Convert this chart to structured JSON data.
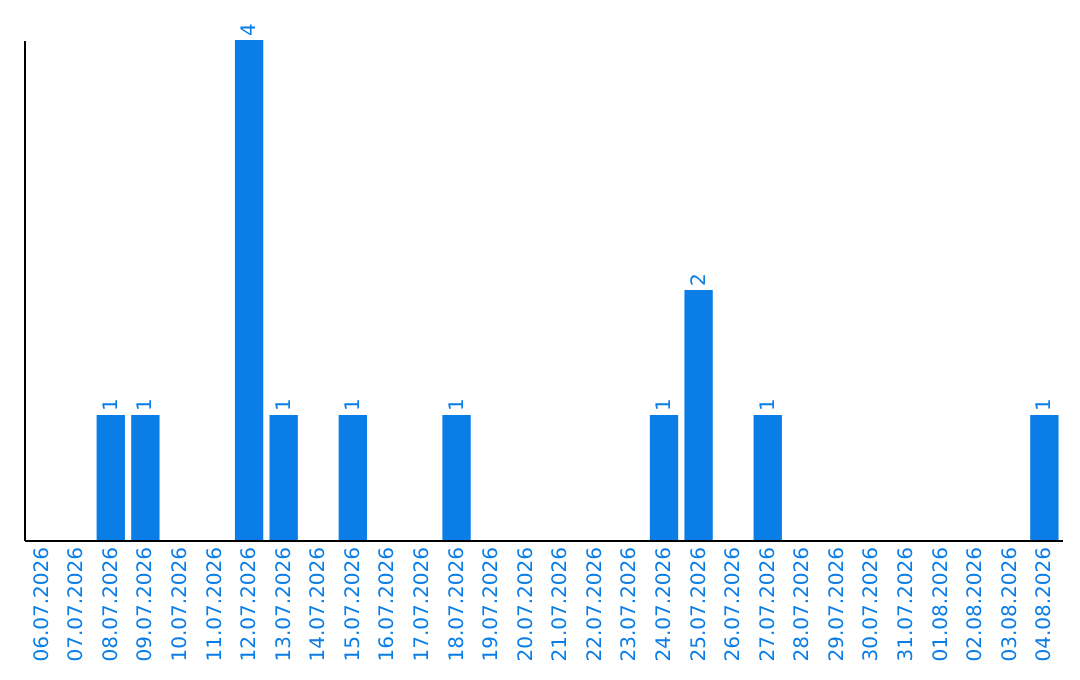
{
  "chart_data": {
    "type": "bar",
    "categories": [
      "06.07.2026",
      "07.07.2026",
      "08.07.2026",
      "09.07.2026",
      "10.07.2026",
      "11.07.2026",
      "12.07.2026",
      "13.07.2026",
      "14.07.2026",
      "15.07.2026",
      "16.07.2026",
      "17.07.2026",
      "18.07.2026",
      "19.07.2026",
      "20.07.2026",
      "21.07.2026",
      "22.07.2026",
      "23.07.2026",
      "24.07.2026",
      "25.07.2026",
      "26.07.2026",
      "27.07.2026",
      "28.07.2026",
      "29.07.2026",
      "30.07.2026",
      "31.07.2026",
      "01.08.2026",
      "02.08.2026",
      "03.08.2026",
      "04.08.2026"
    ],
    "values": [
      0,
      0,
      1,
      1,
      0,
      0,
      4,
      1,
      0,
      1,
      0,
      0,
      1,
      0,
      0,
      0,
      0,
      0,
      1,
      2,
      0,
      1,
      0,
      0,
      0,
      0,
      0,
      0,
      0,
      1
    ],
    "value_labels": [
      null,
      null,
      "1",
      "1",
      null,
      null,
      "4",
      "1",
      null,
      "1",
      null,
      null,
      "1",
      null,
      null,
      null,
      null,
      null,
      "1",
      "2",
      null,
      "1",
      null,
      null,
      null,
      null,
      null,
      null,
      null,
      "1"
    ],
    "color": "#0a7de6",
    "tick_labels": "x"
  }
}
